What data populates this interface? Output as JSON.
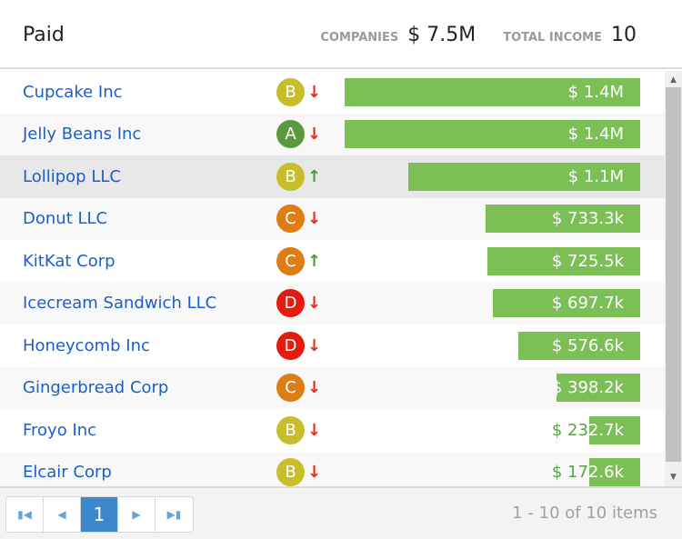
{
  "header": {
    "title": "Paid",
    "companies_label": "COMPANIES",
    "companies_value": "$ 7.5M",
    "income_label": "TOTAL INCOME",
    "income_value": "10"
  },
  "colors": {
    "A": "#5a9a3c",
    "B": "#c8bd2a",
    "C": "#dd7d14",
    "D": "#e41b0f",
    "down": "#e0301e",
    "up": "#4a9a3a",
    "bar": "#7bbf56"
  },
  "rows": [
    {
      "name": "Cupcake Inc",
      "grade": "B",
      "trend": "down",
      "amount": "$ 1.4M",
      "value": 1400000
    },
    {
      "name": "Jelly Beans Inc",
      "grade": "A",
      "trend": "down",
      "amount": "$ 1.4M",
      "value": 1400000
    },
    {
      "name": "Lollipop LLC",
      "grade": "B",
      "trend": "up",
      "amount": "$ 1.1M",
      "value": 1100000,
      "selected": true
    },
    {
      "name": "Donut LLC",
      "grade": "C",
      "trend": "down",
      "amount": "$ 733.3k",
      "value": 733300
    },
    {
      "name": "KitKat Corp",
      "grade": "C",
      "trend": "up",
      "amount": "$ 725.5k",
      "value": 725500
    },
    {
      "name": "Icecream Sandwich LLC",
      "grade": "D",
      "trend": "down",
      "amount": "$ 697.7k",
      "value": 697700
    },
    {
      "name": "Honeycomb Inc",
      "grade": "D",
      "trend": "down",
      "amount": "$ 576.6k",
      "value": 576600
    },
    {
      "name": "Gingerbread Corp",
      "grade": "C",
      "trend": "down",
      "amount": "$ 398.2k",
      "value": 398200
    },
    {
      "name": "Froyo Inc",
      "grade": "B",
      "trend": "down",
      "amount": "$ 232.7k",
      "value": 232700
    },
    {
      "name": "Elcair Corp",
      "grade": "B",
      "trend": "down",
      "amount": "$ 172.6k",
      "value": 172600
    }
  ],
  "pager": {
    "current": "1",
    "info": "1 - 10 of 10 items"
  }
}
